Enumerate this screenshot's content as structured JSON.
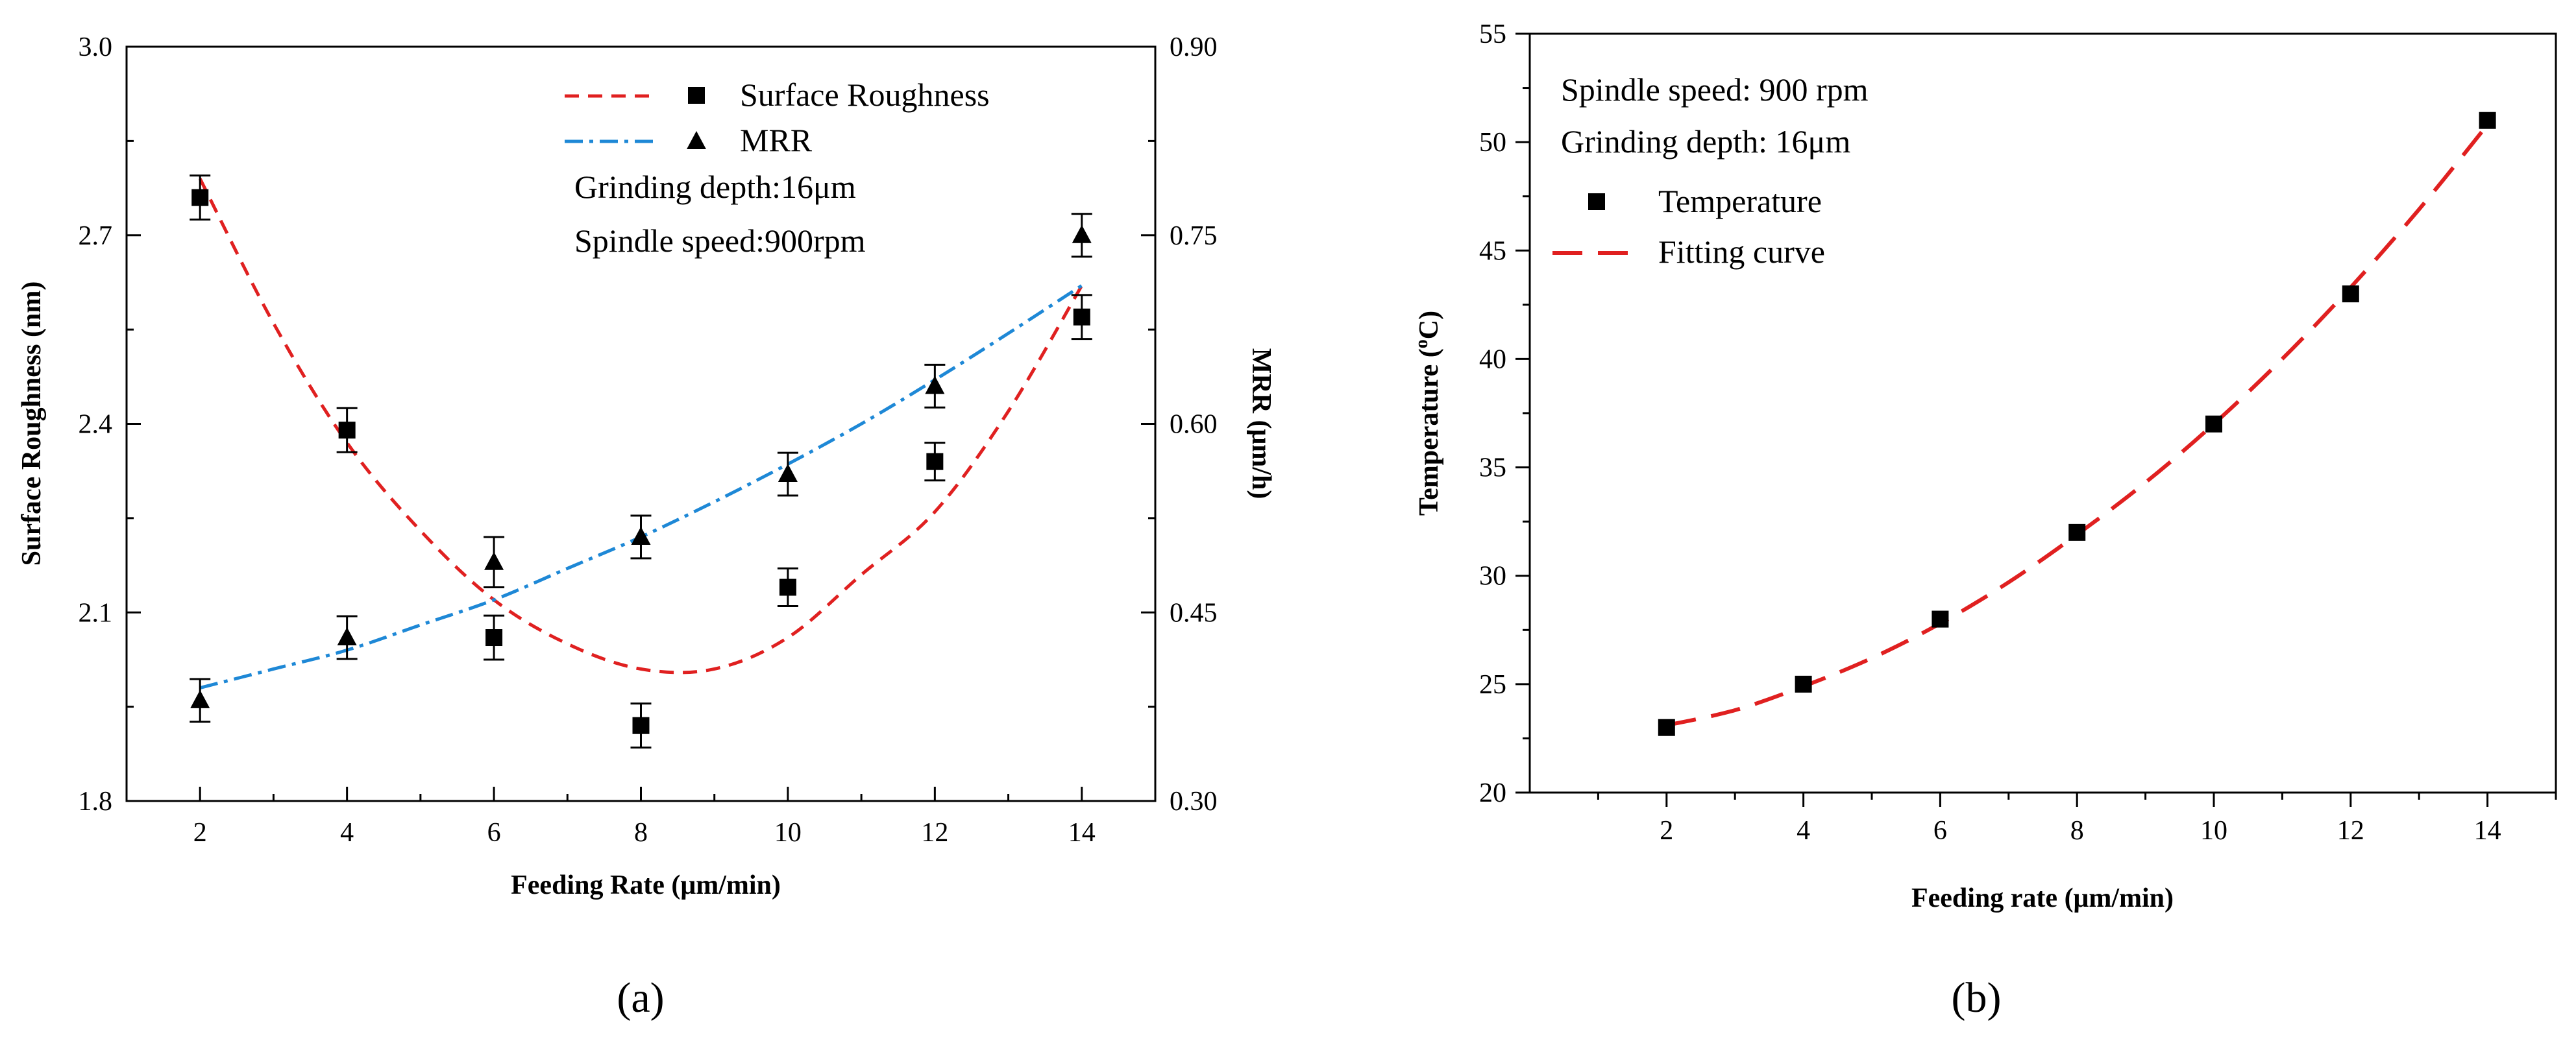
{
  "chart_data": [
    {
      "panel_label": "(a)",
      "type": "line",
      "xlabel": "Feeding Rate (μm/min)",
      "ylabel": "Surface Roughness (nm)",
      "y2label": "MRR (μm/h)",
      "xlim": [
        1,
        15
      ],
      "ylim": [
        1.8,
        3.0
      ],
      "y2lim": [
        0.3,
        0.9
      ],
      "xticks": [
        "2",
        "4",
        "6",
        "8",
        "10",
        "12",
        "14"
      ],
      "yticks": [
        "1.8",
        "2.1",
        "2.4",
        "2.7",
        "3.0"
      ],
      "y2ticks": [
        "0.30",
        "0.45",
        "0.60",
        "0.75",
        "0.90"
      ],
      "x": [
        2,
        4,
        6,
        8,
        10,
        12,
        14
      ],
      "series": [
        {
          "name": "Surface Roughness",
          "axis": "left",
          "marker": "square",
          "values": [
            2.76,
            2.39,
            2.06,
            1.92,
            2.14,
            2.34,
            2.57
          ],
          "errors": [
            0.035,
            0.035,
            0.035,
            0.035,
            0.03,
            0.03,
            0.035
          ],
          "fit": {
            "kind": "dashed",
            "color": "#e02020",
            "x": [
              2,
              3,
              4,
              5,
              6,
              7,
              8,
              9,
              10,
              11,
              12,
              13,
              14
            ],
            "values": [
              2.79,
              2.56,
              2.37,
              2.23,
              2.12,
              2.05,
              2.01,
              2.01,
              2.06,
              2.16,
              2.26,
              2.42,
              2.62
            ]
          }
        },
        {
          "name": "MRR",
          "axis": "right",
          "marker": "triangle",
          "values": [
            0.38,
            0.43,
            0.49,
            0.51,
            0.56,
            0.63,
            0.75
          ],
          "errors": [
            0.017,
            0.017,
            0.02,
            0.017,
            0.017,
            0.017,
            0.017
          ],
          "fit": {
            "kind": "dashdot",
            "color": "#1e88d6",
            "x": [
              2,
              3,
              4,
              5,
              6,
              7,
              8,
              9,
              10,
              11,
              12,
              13,
              14
            ],
            "values": [
              0.39,
              0.405,
              0.42,
              0.44,
              0.46,
              0.485,
              0.51,
              0.538,
              0.568,
              0.6,
              0.635,
              0.672,
              0.71
            ]
          }
        }
      ],
      "annotations": [
        "Grinding depth:16μm",
        "Spindle speed:900rpm"
      ],
      "legend_position": "top-right"
    },
    {
      "panel_label": "(b)",
      "type": "scatter",
      "xlabel": "Feeding rate (μm/min)",
      "ylabel_main": "Temperature (",
      "ylabel_sup": "o",
      "ylabel_end": "C)",
      "xlim": [
        0,
        15
      ],
      "ylim": [
        20,
        55
      ],
      "xticks": [
        "2",
        "4",
        "6",
        "8",
        "10",
        "12",
        "14"
      ],
      "yticks": [
        "20",
        "25",
        "30",
        "35",
        "40",
        "45",
        "50",
        "55"
      ],
      "x": [
        2,
        4,
        6,
        8,
        10,
        12,
        14
      ],
      "series": [
        {
          "name": "Temperature",
          "marker": "square",
          "values": [
            23,
            25,
            28,
            32,
            37,
            43,
            51
          ]
        },
        {
          "name": "Fitting curve",
          "kind": "dashed",
          "color": "#e02020",
          "x": [
            2,
            3,
            4,
            5,
            6,
            7,
            8,
            9,
            10,
            11,
            12,
            13,
            14
          ],
          "values": [
            23.1,
            23.8,
            24.9,
            26.2,
            27.8,
            29.7,
            31.9,
            34.3,
            37.0,
            40.0,
            43.3,
            46.9,
            50.8
          ]
        }
      ],
      "annotations": [
        "Spindle speed: 900 rpm",
        "Grinding depth: 16μm"
      ],
      "legend_position": "top-left"
    }
  ]
}
